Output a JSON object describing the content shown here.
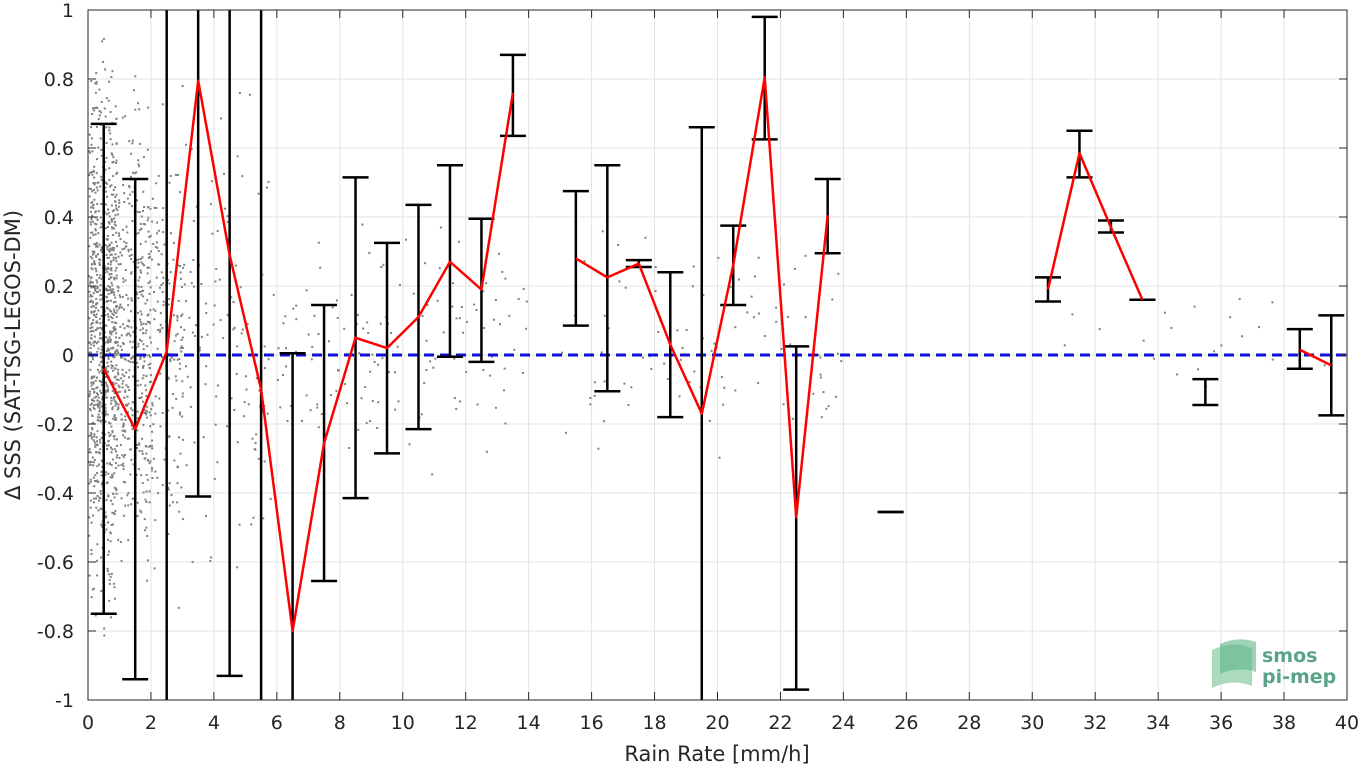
{
  "chart_data": {
    "type": "scatter",
    "title": "",
    "xlabel": "Rain Rate [mm/h]",
    "ylabel": "Δ SSS (SAT-TSG-LEGOS-DM)",
    "xlim": [
      0,
      40
    ],
    "ylim": [
      -1,
      1
    ],
    "x_ticks": [
      "0",
      "2",
      "4",
      "6",
      "8",
      "10",
      "12",
      "14",
      "16",
      "18",
      "20",
      "22",
      "24",
      "26",
      "28",
      "30",
      "32",
      "34",
      "36",
      "38",
      "40"
    ],
    "y_ticks": [
      "-1",
      "-0.8",
      "-0.6",
      "-0.4",
      "-0.2",
      "0",
      "0.2",
      "0.4",
      "0.6",
      "0.8",
      "1"
    ],
    "grid": true,
    "reference_line": {
      "y": 0,
      "style": "dashed",
      "color": "#1010d0"
    },
    "mean_line_color": "#ff0000",
    "errorbar_color": "#000000",
    "scatter_color": "#808080",
    "error_bars": [
      {
        "x": 0.5,
        "lo": -0.75,
        "hi": 0.67
      },
      {
        "x": 1.5,
        "lo": -0.94,
        "hi": 0.51
      },
      {
        "x": 2.5,
        "lo": -1.0,
        "hi": 1.0
      },
      {
        "x": 3.5,
        "lo": -0.41,
        "hi": 1.0
      },
      {
        "x": 4.5,
        "lo": -0.93,
        "hi": 1.0
      },
      {
        "x": 5.5,
        "lo": -1.0,
        "hi": 1.0
      },
      {
        "x": 6.5,
        "lo": -1.0,
        "hi": 0.005
      },
      {
        "x": 7.5,
        "lo": -0.655,
        "hi": 0.145
      },
      {
        "x": 8.5,
        "lo": -0.415,
        "hi": 0.515
      },
      {
        "x": 9.5,
        "lo": -0.285,
        "hi": 0.325
      },
      {
        "x": 10.5,
        "lo": -0.215,
        "hi": 0.435
      },
      {
        "x": 11.5,
        "lo": -0.005,
        "hi": 0.55
      },
      {
        "x": 12.5,
        "lo": -0.02,
        "hi": 0.395
      },
      {
        "x": 13.5,
        "lo": 0.635,
        "hi": 0.87
      },
      {
        "x": 15.5,
        "lo": 0.085,
        "hi": 0.475
      },
      {
        "x": 16.5,
        "lo": -0.105,
        "hi": 0.55
      },
      {
        "x": 17.5,
        "lo": 0.255,
        "hi": 0.275
      },
      {
        "x": 18.5,
        "lo": -0.18,
        "hi": 0.24
      },
      {
        "x": 19.5,
        "lo": -1.0,
        "hi": 0.66
      },
      {
        "x": 20.5,
        "lo": 0.145,
        "hi": 0.375
      },
      {
        "x": 21.5,
        "lo": 0.625,
        "hi": 0.98
      },
      {
        "x": 22.5,
        "lo": -0.97,
        "hi": 0.025
      },
      {
        "x": 23.5,
        "lo": 0.295,
        "hi": 0.51
      },
      {
        "x": 25.5,
        "lo": -0.455,
        "hi": -0.455
      },
      {
        "x": 30.5,
        "lo": 0.155,
        "hi": 0.225
      },
      {
        "x": 31.5,
        "lo": 0.515,
        "hi": 0.65
      },
      {
        "x": 32.5,
        "lo": 0.355,
        "hi": 0.39
      },
      {
        "x": 33.5,
        "lo": 0.16,
        "hi": 0.16
      },
      {
        "x": 35.5,
        "lo": -0.145,
        "hi": -0.07
      },
      {
        "x": 38.5,
        "lo": -0.04,
        "hi": 0.075
      },
      {
        "x": 39.5,
        "lo": -0.175,
        "hi": 0.115
      }
    ],
    "mean_segments": [
      [
        [
          0.5,
          -0.04
        ],
        [
          1.5,
          -0.215
        ],
        [
          2.5,
          0.01
        ],
        [
          3.5,
          0.795
        ],
        [
          4.5,
          0.29
        ],
        [
          5.5,
          -0.1
        ],
        [
          6.5,
          -0.8
        ],
        [
          7.5,
          -0.255
        ],
        [
          8.5,
          0.05
        ],
        [
          9.5,
          0.02
        ],
        [
          10.5,
          0.11
        ],
        [
          11.5,
          0.27
        ],
        [
          12.5,
          0.19
        ],
        [
          13.5,
          0.76
        ]
      ],
      [
        [
          15.5,
          0.28
        ],
        [
          16.5,
          0.225
        ],
        [
          17.5,
          0.265
        ],
        [
          18.5,
          0.03
        ],
        [
          19.5,
          -0.17
        ],
        [
          20.5,
          0.26
        ],
        [
          21.5,
          0.805
        ],
        [
          22.5,
          -0.47
        ],
        [
          23.5,
          0.405
        ]
      ],
      [
        [
          30.5,
          0.19
        ],
        [
          31.5,
          0.585
        ],
        [
          32.5,
          0.37
        ],
        [
          33.5,
          0.16
        ]
      ],
      [
        [
          38.5,
          0.015
        ],
        [
          39.5,
          -0.03
        ]
      ]
    ]
  },
  "logo": {
    "line1": "smos",
    "line2": "pi-mep"
  }
}
